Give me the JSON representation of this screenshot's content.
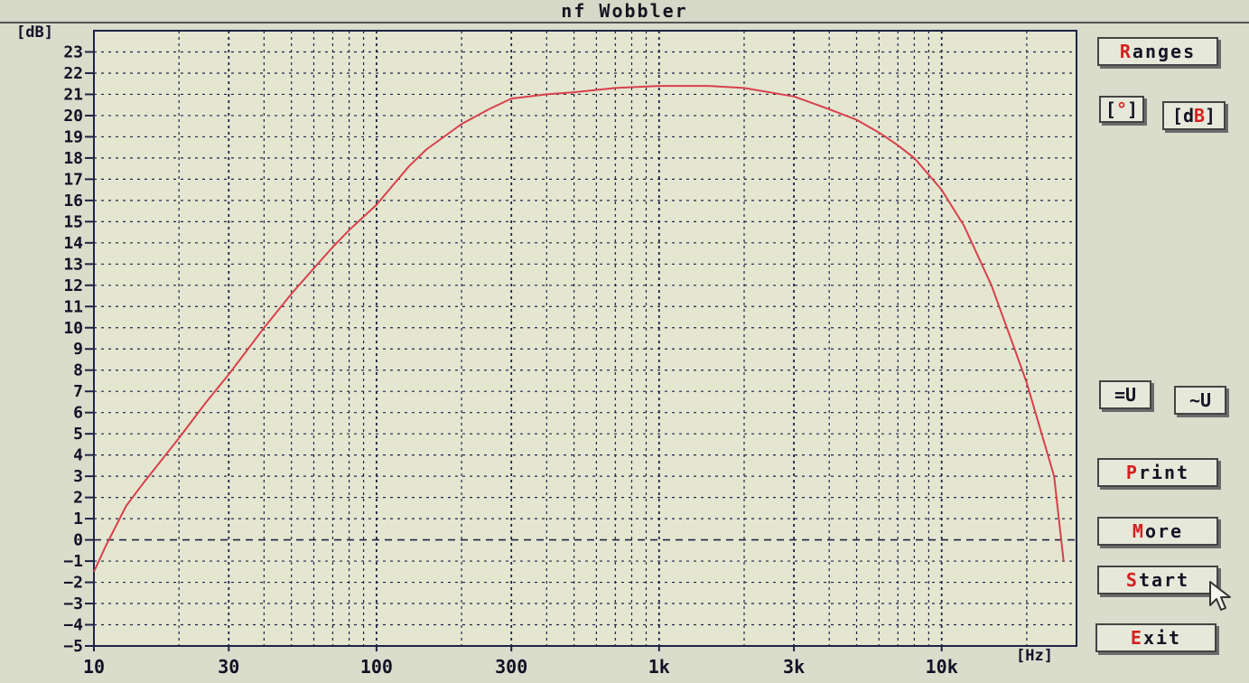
{
  "window": {
    "title": "nf Wobbler"
  },
  "buttons": {
    "ranges": {
      "hot": "R",
      "rest": "anges"
    },
    "deg": {
      "pre": "[",
      "hot": "°",
      "post": "]"
    },
    "db": {
      "pre": "[d",
      "hot": "B",
      "post": "]"
    },
    "dc_u": {
      "label": "=U"
    },
    "ac_u": {
      "label": "~U"
    },
    "print": {
      "hot": "P",
      "rest": "rint"
    },
    "more": {
      "hot": "M",
      "rest": "ore"
    },
    "start": {
      "hot": "S",
      "rest": "tart"
    },
    "exit": {
      "hot": "E",
      "rest": "xit"
    }
  },
  "colors": {
    "curve": "#d8404c",
    "grid": "#1e2447",
    "plot_bg": "#e4e6d0",
    "hotkey": "#d42020"
  },
  "chart_data": {
    "type": "line",
    "title": "",
    "xlabel": "[Hz]",
    "ylabel": "[dB]",
    "xscale": "log",
    "xlim": [
      10,
      30000
    ],
    "ylim": [
      -5,
      24
    ],
    "grid": true,
    "reference_line_y": 0,
    "x_ticks": [
      {
        "v": 10,
        "label": "10"
      },
      {
        "v": 30,
        "label": "30"
      },
      {
        "v": 100,
        "label": "100"
      },
      {
        "v": 300,
        "label": "300"
      },
      {
        "v": 1000,
        "label": "1k"
      },
      {
        "v": 3000,
        "label": "3k"
      },
      {
        "v": 10000,
        "label": "10k"
      }
    ],
    "y_ticks": [
      -5,
      -4,
      -3,
      -2,
      -1,
      0,
      1,
      2,
      3,
      4,
      5,
      6,
      7,
      8,
      9,
      10,
      11,
      12,
      13,
      14,
      15,
      16,
      17,
      18,
      19,
      20,
      21,
      22,
      23
    ],
    "series": [
      {
        "x": [
          10,
          11,
          13,
          15,
          20,
          25,
          30,
          40,
          50,
          60,
          70,
          80,
          100,
          130,
          150,
          200,
          250,
          300,
          400,
          500,
          700,
          1000,
          1500,
          2000,
          3000,
          4000,
          5000,
          6000,
          7000,
          8000,
          10000,
          12000,
          15000,
          18000,
          20000,
          25000,
          27000
        ],
        "y": [
          -1.5,
          -0.3,
          1.6,
          2.7,
          4.8,
          6.5,
          7.8,
          10.0,
          11.6,
          12.8,
          13.8,
          14.6,
          15.8,
          17.6,
          18.4,
          19.6,
          20.3,
          20.8,
          21.0,
          21.1,
          21.3,
          21.4,
          21.4,
          21.3,
          20.9,
          20.3,
          19.8,
          19.2,
          18.6,
          18.0,
          16.5,
          14.8,
          12.0,
          9.1,
          7.4,
          3.0,
          -1.0
        ]
      }
    ]
  }
}
